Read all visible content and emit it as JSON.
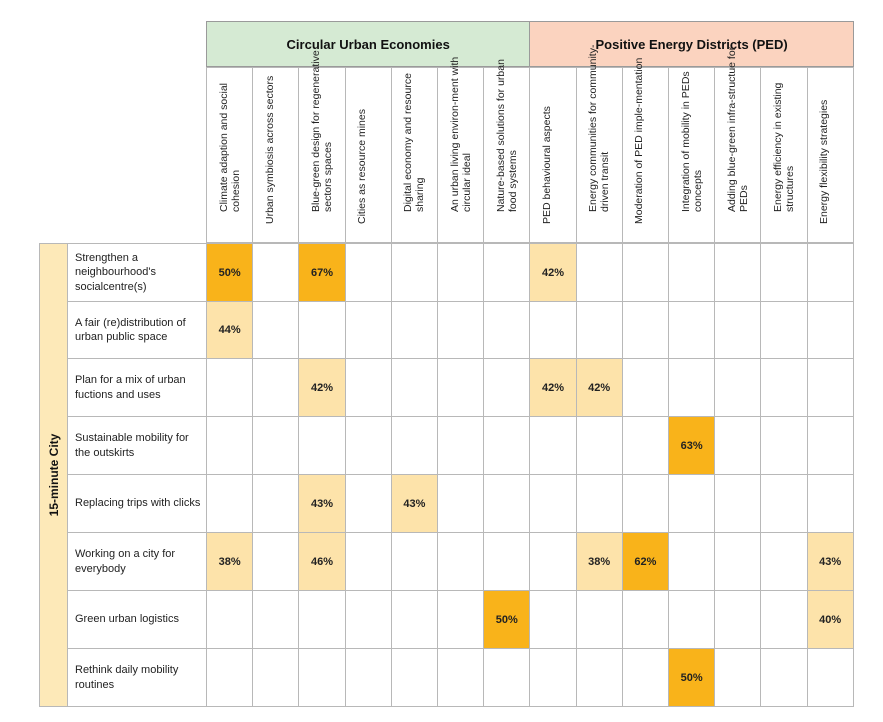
{
  "chart_data": {
    "type": "table",
    "side_label": "15-minute City",
    "groups": [
      {
        "label": "Circular Urban Economies",
        "color": "#d5ead3",
        "span": 7
      },
      {
        "label": "Positive Energy Districts (PED)",
        "color": "#fbd3bf",
        "span": 7
      }
    ],
    "columns": [
      "Climate adaption and social cohesion",
      "Urban symbiosis across sectors",
      "Blue-green design for regenerative sectors spaces",
      "Cities as resource mines",
      "Digital economy and resource sharing",
      "An urban living environ-ment with circular ideal",
      "Nature-based solutions for urban food systems",
      "PED behavioural aspects",
      "Energy communities for community-driven transit",
      "Moderation of PED imple-mentation",
      "Integration of mobility in PEDs concepts",
      "Adding blue-green infra-structue for PEDs",
      "Energy efficiency in existing structures",
      "Energy flexibility strategies"
    ],
    "rows": [
      {
        "label": "Strengthen a neighbourhood's socialcentre(s)",
        "values": [
          50,
          null,
          67,
          null,
          null,
          null,
          null,
          42,
          null,
          null,
          null,
          null,
          null,
          null
        ]
      },
      {
        "label": "A fair (re)distribution of urban public space",
        "values": [
          44,
          null,
          null,
          null,
          null,
          null,
          null,
          null,
          null,
          null,
          null,
          null,
          null,
          null
        ]
      },
      {
        "label": "Plan for a mix of urban fuctions and uses",
        "values": [
          null,
          null,
          42,
          null,
          null,
          null,
          null,
          42,
          42,
          null,
          null,
          null,
          null,
          null
        ]
      },
      {
        "label": "Sustainable mobility for the outskirts",
        "values": [
          null,
          null,
          null,
          null,
          null,
          null,
          null,
          null,
          null,
          null,
          63,
          null,
          null,
          null
        ]
      },
      {
        "label": "Replacing trips with clicks",
        "values": [
          null,
          null,
          43,
          null,
          43,
          null,
          null,
          null,
          null,
          null,
          null,
          null,
          null,
          null
        ]
      },
      {
        "label": "Working on a city for everybody",
        "values": [
          38,
          null,
          46,
          null,
          null,
          null,
          null,
          null,
          38,
          62,
          null,
          null,
          null,
          43
        ]
      },
      {
        "label": "Green urban logistics",
        "values": [
          null,
          null,
          null,
          null,
          null,
          null,
          50,
          null,
          null,
          null,
          null,
          null,
          null,
          40
        ]
      },
      {
        "label": "Rethink daily mobility routines",
        "values": [
          null,
          null,
          null,
          null,
          null,
          null,
          null,
          null,
          null,
          null,
          50,
          null,
          null,
          null
        ]
      }
    ],
    "value_suffix": "%",
    "color_scale": {
      "low": "#fde3aa",
      "high": "#f9b31a",
      "threshold": 50
    }
  }
}
